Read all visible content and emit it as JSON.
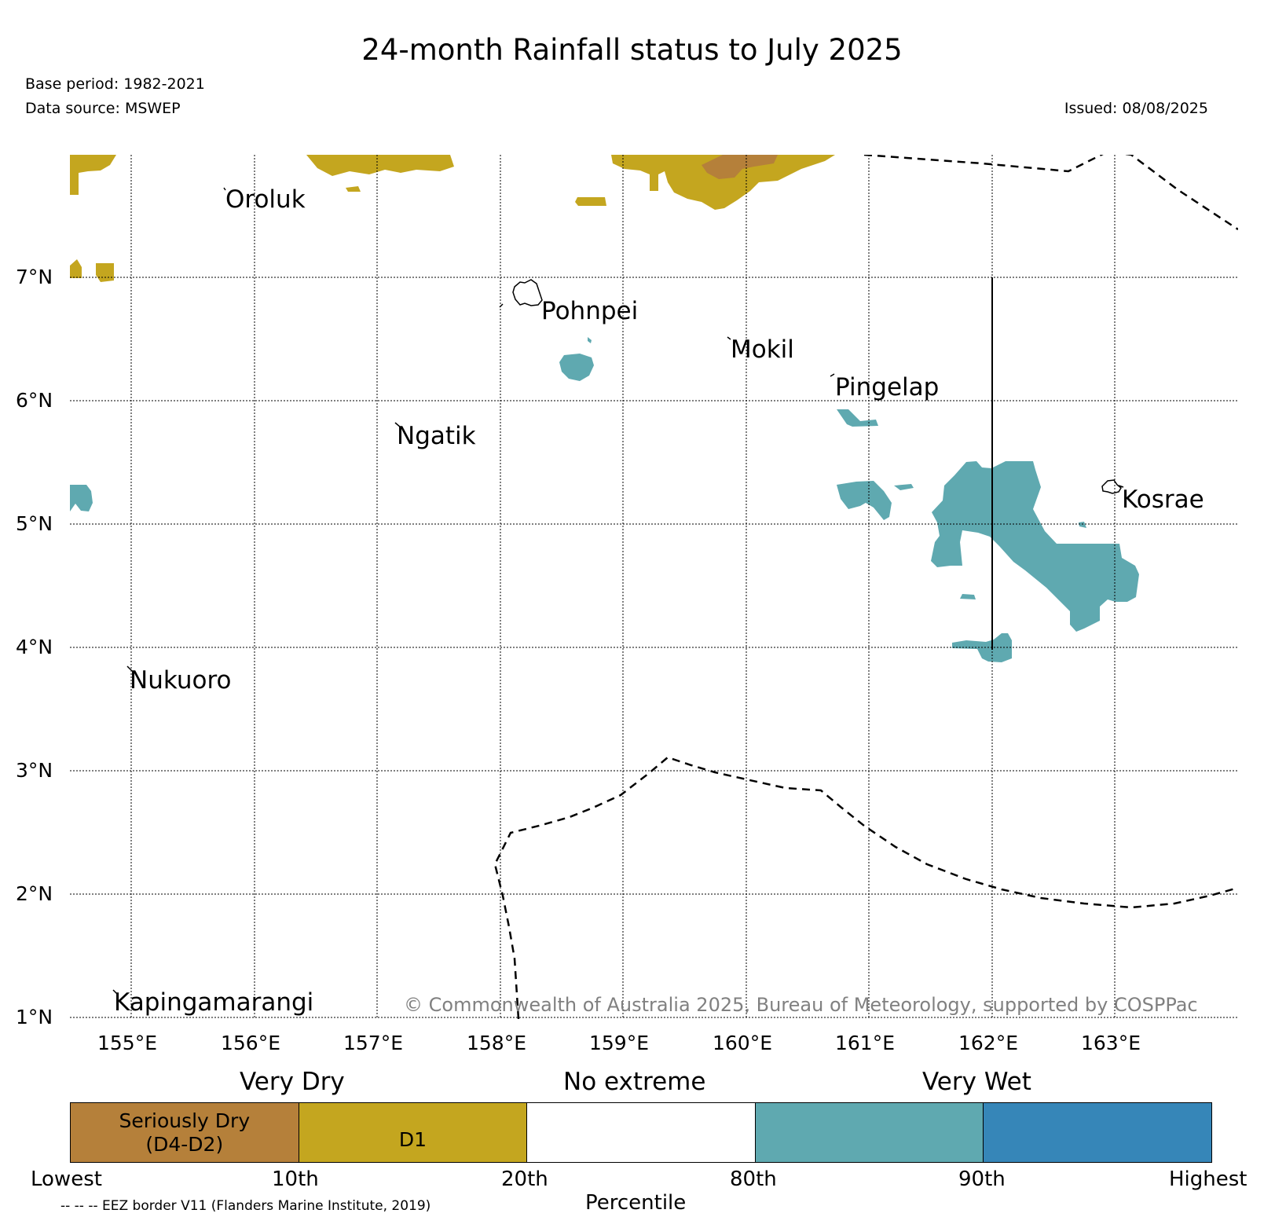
{
  "header": {
    "title": "24-month Rainfall status to July 2025",
    "base_period": "Base period: 1982-2021",
    "data_source": "Data source: MSWEP",
    "issued": "Issued: 08/08/2025"
  },
  "map": {
    "lat_ticks": [
      "7°N",
      "6°N",
      "5°N",
      "4°N",
      "3°N",
      "2°N",
      "1°N"
    ],
    "lon_ticks": [
      "155°E",
      "156°E",
      "157°E",
      "158°E",
      "159°E",
      "160°E",
      "161°E",
      "162°E",
      "163°E"
    ],
    "places": {
      "oroluk": "Oroluk",
      "pohnpei": "Pohnpei",
      "mokil": "Mokil",
      "pingelap": "Pingelap",
      "ngatik": "Ngatik",
      "kosrae": "Kosrae",
      "nukuoro": "Nukuoro",
      "kapingamarangi": "Kapingamarangi"
    },
    "credit": "© Commonwealth of Australia 2025, Bureau of Meteorology, supported by COSPPac",
    "colors": {
      "seriously_dry": "#b5803a",
      "d1": "#c4a61f",
      "no_extreme": "#ffffff",
      "wet_80_90": "#5fa9b0",
      "wet_90_plus": "#3686b8"
    }
  },
  "legend": {
    "top_labels": [
      "Very Dry",
      "No extreme",
      "Very Wet"
    ],
    "box_labels": {
      "seriously_dry": "Seriously Dry\n(D4-D2)",
      "d1": "D1"
    },
    "bottom_labels": [
      "Lowest",
      "10th",
      "20th",
      "80th",
      "90th",
      "Highest"
    ],
    "axis_label": "Percentile",
    "eez_note": "-- -- -- EEZ border V11 (Flanders Marine Institute, 2019)"
  }
}
